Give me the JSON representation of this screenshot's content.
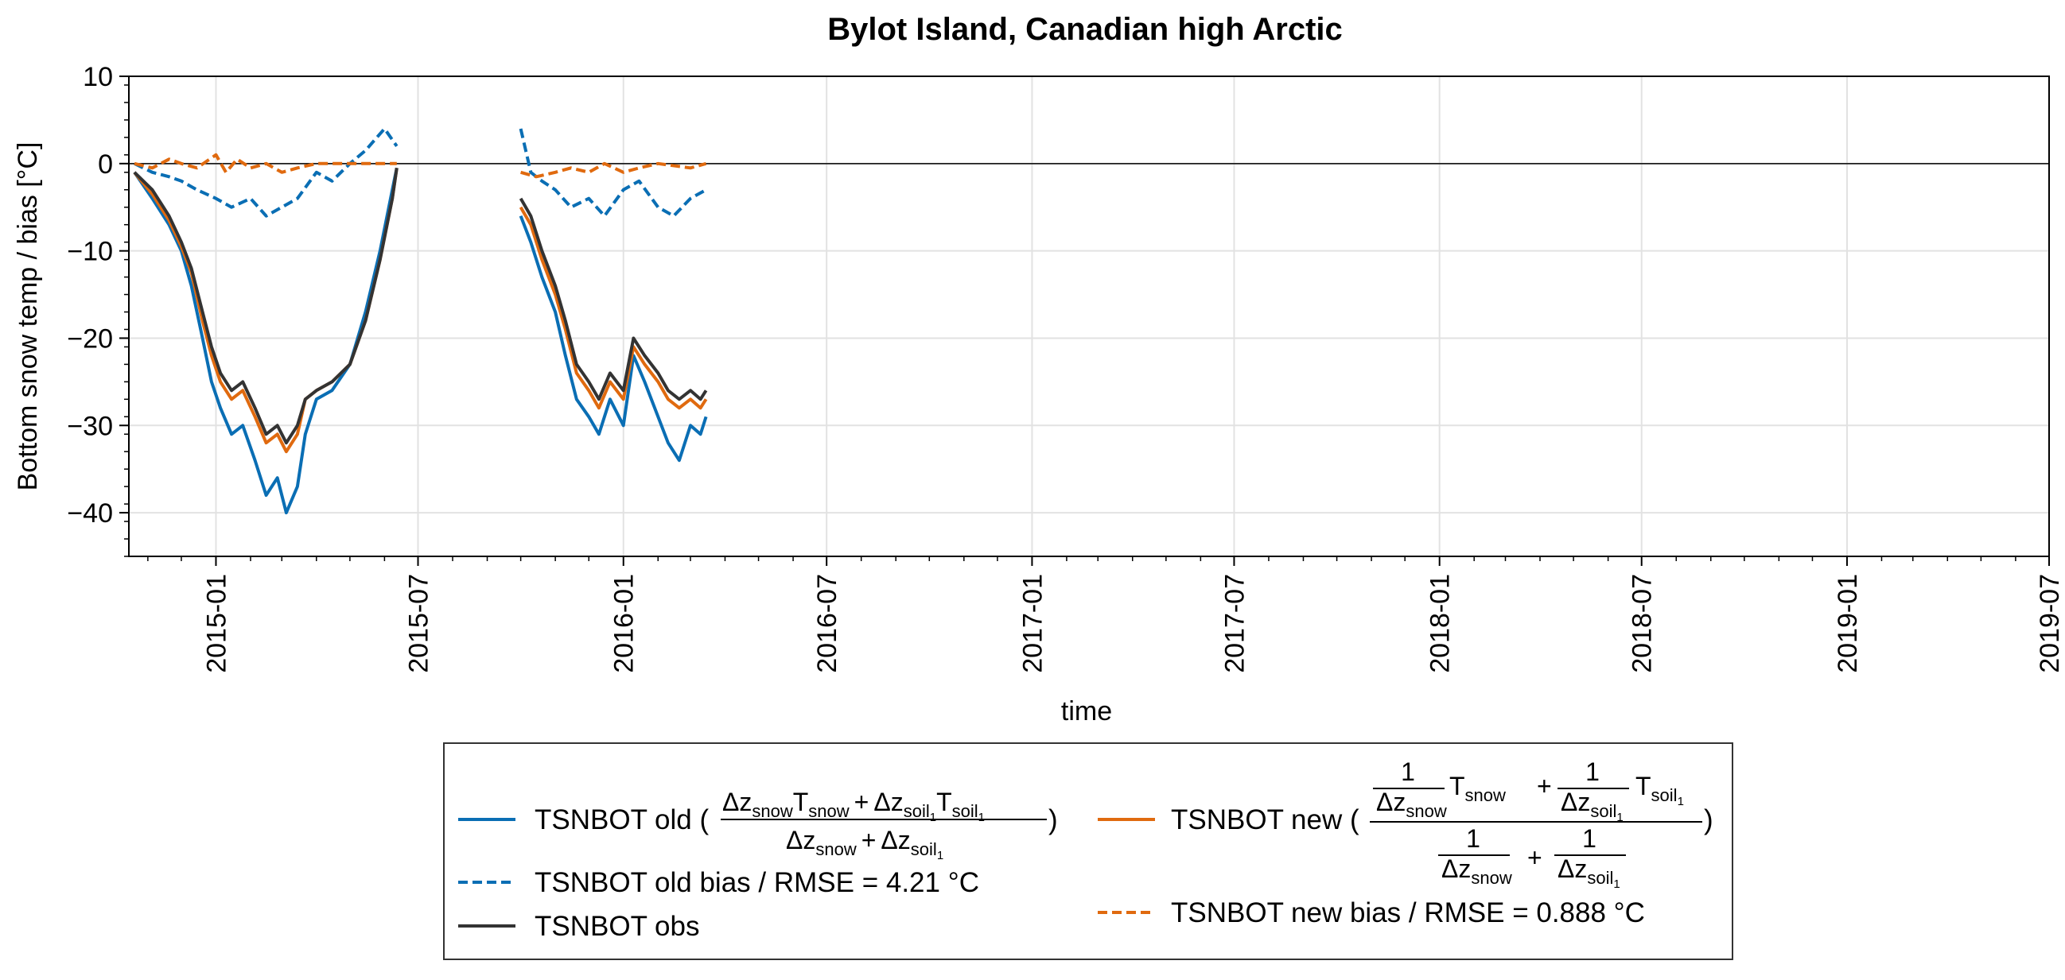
{
  "chart_data": {
    "type": "line",
    "title": "Bylot Island, Canadian high Arctic",
    "xlabel": "time",
    "ylabel": "Bottom snow temp / bias [°C]",
    "ylim": [
      -45,
      10
    ],
    "xlim": [
      "2014-10-15",
      "2019-07-01"
    ],
    "yticks": [
      10,
      0,
      -10,
      -20,
      -30,
      -40
    ],
    "ytick_labels": [
      "10",
      "0",
      "−10",
      "−20",
      "−30",
      "−40"
    ],
    "xticks": [
      "2015-01",
      "2015-07",
      "2016-01",
      "2016-07",
      "2017-01",
      "2017-07",
      "2018-01",
      "2018-07",
      "2019-01",
      "2019-07"
    ],
    "grid": true,
    "zero_line": true,
    "legend_placement": "bottom-center",
    "colors": {
      "old": "#0a6eb4",
      "new": "#e06a0f",
      "obs": "#333333"
    },
    "series": [
      {
        "key": "old",
        "name": "TSNBOT old",
        "style": "solid",
        "color": "#0a6eb4",
        "segments": [
          [
            [
              "2014-10-20",
              -1
            ],
            [
              "2014-11-05",
              -4
            ],
            [
              "2014-11-20",
              -7
            ],
            [
              "2014-12-01",
              -10
            ],
            [
              "2014-12-10",
              -14
            ],
            [
              "2014-12-20",
              -20
            ],
            [
              "2014-12-28",
              -25
            ],
            [
              "2015-01-05",
              -28
            ],
            [
              "2015-01-15",
              -31
            ],
            [
              "2015-01-25",
              -30
            ],
            [
              "2015-02-05",
              -34
            ],
            [
              "2015-02-15",
              -38
            ],
            [
              "2015-02-25",
              -36
            ],
            [
              "2015-03-05",
              -40
            ],
            [
              "2015-03-15",
              -37
            ],
            [
              "2015-03-22",
              -31
            ],
            [
              "2015-04-01",
              -27
            ],
            [
              "2015-04-15",
              -26
            ],
            [
              "2015-05-01",
              -23
            ],
            [
              "2015-05-15",
              -17
            ],
            [
              "2015-05-28",
              -10
            ],
            [
              "2015-06-08",
              -3
            ],
            [
              "2015-06-12",
              -0.5
            ]
          ],
          [
            [
              "2015-10-01",
              -6
            ],
            [
              "2015-10-10",
              -9
            ],
            [
              "2015-10-20",
              -13
            ],
            [
              "2015-11-01",
              -17
            ],
            [
              "2015-11-10",
              -22
            ],
            [
              "2015-11-20",
              -27
            ],
            [
              "2015-12-01",
              -29
            ],
            [
              "2015-12-10",
              -31
            ],
            [
              "2015-12-20",
              -27
            ],
            [
              "2016-01-01",
              -30
            ],
            [
              "2016-01-10",
              -22
            ],
            [
              "2016-01-20",
              -25
            ],
            [
              "2016-02-01",
              -29
            ],
            [
              "2016-02-10",
              -32
            ],
            [
              "2016-02-20",
              -34
            ],
            [
              "2016-03-01",
              -30
            ],
            [
              "2016-03-10",
              -31
            ],
            [
              "2016-03-15",
              -29
            ]
          ]
        ]
      },
      {
        "key": "old_bias",
        "name": "TSNBOT old bias / RMSE = 4.21 °C",
        "style": "dashed",
        "color": "#0a6eb4",
        "segments": [
          [
            [
              "2014-10-20",
              0
            ],
            [
              "2014-11-05",
              -1
            ],
            [
              "2014-11-20",
              -1.5
            ],
            [
              "2014-12-01",
              -2
            ],
            [
              "2014-12-15",
              -3
            ],
            [
              "2015-01-01",
              -4
            ],
            [
              "2015-01-15",
              -5
            ],
            [
              "2015-02-01",
              -4
            ],
            [
              "2015-02-15",
              -6
            ],
            [
              "2015-03-01",
              -5
            ],
            [
              "2015-03-15",
              -4
            ],
            [
              "2015-04-01",
              -1
            ],
            [
              "2015-04-15",
              -2
            ],
            [
              "2015-05-01",
              0
            ],
            [
              "2015-05-15",
              1.5
            ],
            [
              "2015-06-01",
              4
            ],
            [
              "2015-06-12",
              2
            ]
          ],
          [
            [
              "2015-10-01",
              4
            ],
            [
              "2015-10-10",
              -1
            ],
            [
              "2015-10-20",
              -2
            ],
            [
              "2015-11-01",
              -3
            ],
            [
              "2015-11-15",
              -5
            ],
            [
              "2015-12-01",
              -4
            ],
            [
              "2015-12-15",
              -6
            ],
            [
              "2016-01-01",
              -3
            ],
            [
              "2016-01-15",
              -2
            ],
            [
              "2016-02-01",
              -5
            ],
            [
              "2016-02-15",
              -6
            ],
            [
              "2016-03-01",
              -4
            ],
            [
              "2016-03-15",
              -3
            ]
          ]
        ]
      },
      {
        "key": "obs",
        "name": "TSNBOT obs",
        "style": "solid",
        "color": "#333333",
        "segments": [
          [
            [
              "2014-10-20",
              -1
            ],
            [
              "2014-11-05",
              -3
            ],
            [
              "2014-11-20",
              -6
            ],
            [
              "2014-12-01",
              -9
            ],
            [
              "2014-12-10",
              -12
            ],
            [
              "2014-12-20",
              -17
            ],
            [
              "2014-12-28",
              -21
            ],
            [
              "2015-01-05",
              -24
            ],
            [
              "2015-01-15",
              -26
            ],
            [
              "2015-01-25",
              -25
            ],
            [
              "2015-02-05",
              -28
            ],
            [
              "2015-02-15",
              -31
            ],
            [
              "2015-02-25",
              -30
            ],
            [
              "2015-03-05",
              -32
            ],
            [
              "2015-03-15",
              -30
            ],
            [
              "2015-03-22",
              -27
            ],
            [
              "2015-04-01",
              -26
            ],
            [
              "2015-04-15",
              -25
            ],
            [
              "2015-05-01",
              -23
            ],
            [
              "2015-05-15",
              -18
            ],
            [
              "2015-05-28",
              -11
            ],
            [
              "2015-06-08",
              -4
            ],
            [
              "2015-06-12",
              -0.5
            ]
          ],
          [
            [
              "2015-10-01",
              -4
            ],
            [
              "2015-10-10",
              -6
            ],
            [
              "2015-10-20",
              -10
            ],
            [
              "2015-11-01",
              -14
            ],
            [
              "2015-11-10",
              -18
            ],
            [
              "2015-11-20",
              -23
            ],
            [
              "2015-12-01",
              -25
            ],
            [
              "2015-12-10",
              -27
            ],
            [
              "2015-12-20",
              -24
            ],
            [
              "2016-01-01",
              -26
            ],
            [
              "2016-01-10",
              -20
            ],
            [
              "2016-01-20",
              -22
            ],
            [
              "2016-02-01",
              -24
            ],
            [
              "2016-02-10",
              -26
            ],
            [
              "2016-02-20",
              -27
            ],
            [
              "2016-03-01",
              -26
            ],
            [
              "2016-03-10",
              -27
            ],
            [
              "2016-03-15",
              -26
            ]
          ]
        ]
      },
      {
        "key": "new",
        "name": "TSNBOT new",
        "style": "solid",
        "color": "#e06a0f",
        "segments": [
          [
            [
              "2014-10-20",
              -1
            ],
            [
              "2014-11-05",
              -3.5
            ],
            [
              "2014-11-20",
              -6.5
            ],
            [
              "2014-12-01",
              -9.5
            ],
            [
              "2014-12-10",
              -12.5
            ],
            [
              "2014-12-20",
              -18
            ],
            [
              "2014-12-28",
              -22
            ],
            [
              "2015-01-05",
              -25
            ],
            [
              "2015-01-15",
              -27
            ],
            [
              "2015-01-25",
              -26
            ],
            [
              "2015-02-05",
              -29
            ],
            [
              "2015-02-15",
              -32
            ],
            [
              "2015-02-25",
              -31
            ],
            [
              "2015-03-05",
              -33
            ],
            [
              "2015-03-15",
              -31
            ],
            [
              "2015-03-22",
              -27
            ],
            [
              "2015-04-01",
              -26
            ],
            [
              "2015-04-15",
              -25
            ],
            [
              "2015-05-01",
              -23
            ],
            [
              "2015-05-15",
              -18
            ],
            [
              "2015-05-28",
              -11
            ],
            [
              "2015-06-08",
              -4
            ],
            [
              "2015-06-12",
              -0.5
            ]
          ],
          [
            [
              "2015-10-01",
              -5
            ],
            [
              "2015-10-10",
              -7
            ],
            [
              "2015-10-20",
              -11
            ],
            [
              "2015-11-01",
              -15
            ],
            [
              "2015-11-10",
              -19
            ],
            [
              "2015-11-20",
              -24
            ],
            [
              "2015-12-01",
              -26
            ],
            [
              "2015-12-10",
              -28
            ],
            [
              "2015-12-20",
              -25
            ],
            [
              "2016-01-01",
              -27
            ],
            [
              "2016-01-10",
              -21
            ],
            [
              "2016-01-20",
              -23
            ],
            [
              "2016-02-01",
              -25
            ],
            [
              "2016-02-10",
              -27
            ],
            [
              "2016-02-20",
              -28
            ],
            [
              "2016-03-01",
              -27
            ],
            [
              "2016-03-10",
              -28
            ],
            [
              "2016-03-15",
              -27
            ]
          ]
        ]
      },
      {
        "key": "new_bias",
        "name": "TSNBOT new bias / RMSE = 0.888 °C",
        "style": "dashed",
        "color": "#e06a0f",
        "segments": [
          [
            [
              "2014-10-20",
              0
            ],
            [
              "2014-11-05",
              -0.5
            ],
            [
              "2014-11-20",
              0.5
            ],
            [
              "2014-12-01",
              0
            ],
            [
              "2014-12-15",
              -0.5
            ],
            [
              "2015-01-01",
              1
            ],
            [
              "2015-01-10",
              -1
            ],
            [
              "2015-01-20",
              0.5
            ],
            [
              "2015-02-01",
              -0.5
            ],
            [
              "2015-02-15",
              0
            ],
            [
              "2015-03-01",
              -1
            ],
            [
              "2015-03-15",
              -0.5
            ],
            [
              "2015-04-01",
              0
            ],
            [
              "2015-05-01",
              0
            ],
            [
              "2015-06-12",
              0
            ]
          ],
          [
            [
              "2015-10-01",
              -1
            ],
            [
              "2015-10-15",
              -1.5
            ],
            [
              "2015-11-01",
              -1
            ],
            [
              "2015-11-15",
              -0.5
            ],
            [
              "2015-12-01",
              -1
            ],
            [
              "2015-12-15",
              0
            ],
            [
              "2016-01-01",
              -1
            ],
            [
              "2016-01-15",
              -0.5
            ],
            [
              "2016-02-01",
              0
            ],
            [
              "2016-03-01",
              -0.5
            ],
            [
              "2016-03-15",
              0
            ]
          ]
        ]
      }
    ]
  },
  "legend": {
    "old": "TSNBOT old (",
    "new": "TSNBOT new (",
    "old_bias": "TSNBOT old bias / RMSE = 4.21 °C",
    "new_bias": "TSNBOT new bias / RMSE = 0.888 °C",
    "obs": "TSNBOT obs",
    "close_paren": ")",
    "frac": {
      "dz": "Δz",
      "T": "T",
      "snow": "snow",
      "soil": "soil",
      "one_sub": "1",
      "plus": "+",
      "one": "1"
    }
  }
}
